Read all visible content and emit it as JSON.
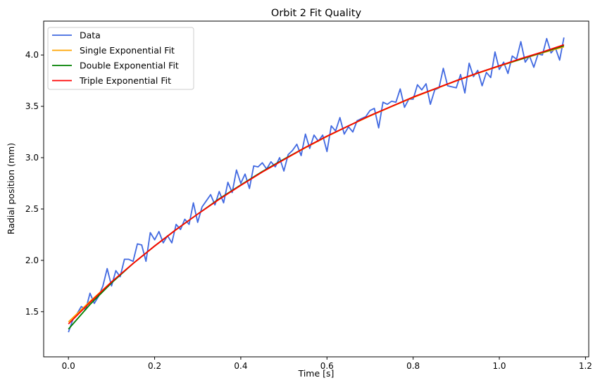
{
  "chart_data": {
    "type": "line",
    "title": "Orbit 2 Fit Quality",
    "xlabel": "Time [s]",
    "ylabel": "Radial position (mm)",
    "xlim": [
      -0.0575,
      1.2075
    ],
    "ylim": [
      1.06,
      4.33
    ],
    "xticks": [
      0.0,
      0.2,
      0.4,
      0.6,
      0.8,
      1.0,
      1.2
    ],
    "xtick_labels": [
      "0.0",
      "0.2",
      "0.4",
      "0.6",
      "0.8",
      "1.0",
      "1.2"
    ],
    "yticks": [
      1.5,
      2.0,
      2.5,
      3.0,
      3.5,
      4.0
    ],
    "ytick_labels": [
      "1.5",
      "2.0",
      "2.5",
      "3.0",
      "3.5",
      "4.0"
    ],
    "grid": false,
    "legend_placement": "top-left",
    "data_x_start": 0.0,
    "data_x_step": 0.01,
    "fit_x_step": 0.05,
    "series": [
      {
        "name": "Data",
        "color": "#4169e1",
        "kind": "data",
        "values": [
          1.3,
          1.42,
          1.48,
          1.55,
          1.52,
          1.68,
          1.58,
          1.65,
          1.75,
          1.92,
          1.75,
          1.9,
          1.84,
          2.01,
          2.01,
          1.99,
          2.16,
          2.15,
          1.99,
          2.27,
          2.2,
          2.28,
          2.17,
          2.24,
          2.17,
          2.35,
          2.3,
          2.4,
          2.35,
          2.56,
          2.37,
          2.52,
          2.58,
          2.64,
          2.54,
          2.67,
          2.56,
          2.76,
          2.66,
          2.88,
          2.75,
          2.84,
          2.7,
          2.92,
          2.91,
          2.95,
          2.89,
          2.96,
          2.91,
          3.0,
          2.87,
          3.03,
          3.07,
          3.13,
          3.02,
          3.23,
          3.09,
          3.22,
          3.16,
          3.22,
          3.06,
          3.31,
          3.26,
          3.39,
          3.23,
          3.3,
          3.25,
          3.36,
          3.38,
          3.4,
          3.46,
          3.48,
          3.29,
          3.54,
          3.52,
          3.55,
          3.54,
          3.67,
          3.49,
          3.57,
          3.57,
          3.71,
          3.66,
          3.72,
          3.52,
          3.66,
          3.68,
          3.87,
          3.7,
          3.69,
          3.68,
          3.81,
          3.63,
          3.92,
          3.79,
          3.85,
          3.7,
          3.83,
          3.78,
          4.03,
          3.86,
          3.93,
          3.82,
          3.99,
          3.96,
          4.13,
          3.93,
          3.99,
          3.88,
          4.01,
          4.0,
          4.16,
          4.02,
          4.07,
          3.95,
          4.17
        ]
      },
      {
        "name": "Single Exponential Fit",
        "color": "#ffa500",
        "kind": "fit",
        "values": [
          1.4,
          1.6,
          1.79,
          1.969,
          2.139,
          2.299,
          2.451,
          2.595,
          2.731,
          2.86,
          2.981,
          3.097,
          3.206,
          3.309,
          3.406,
          3.498,
          3.586,
          3.668,
          3.747,
          3.821,
          3.891,
          3.957,
          4.02,
          4.079
        ]
      },
      {
        "name": "Double Exponential Fit",
        "color": "#008000",
        "kind": "fit",
        "values": [
          1.33,
          1.57,
          1.78,
          1.97,
          2.14,
          2.3,
          2.45,
          2.6,
          2.735,
          2.865,
          2.985,
          3.1,
          3.21,
          3.31,
          3.41,
          3.5,
          3.59,
          3.67,
          3.75,
          3.825,
          3.895,
          3.96,
          4.025,
          4.09
        ]
      },
      {
        "name": "Triple Exponential Fit",
        "color": "#ff0000",
        "kind": "fit",
        "values": [
          1.38,
          1.59,
          1.79,
          1.97,
          2.14,
          2.3,
          2.45,
          2.595,
          2.73,
          2.86,
          2.98,
          3.1,
          3.21,
          3.31,
          3.41,
          3.5,
          3.59,
          3.67,
          3.75,
          3.825,
          3.895,
          3.965,
          4.03,
          4.1
        ]
      }
    ]
  }
}
